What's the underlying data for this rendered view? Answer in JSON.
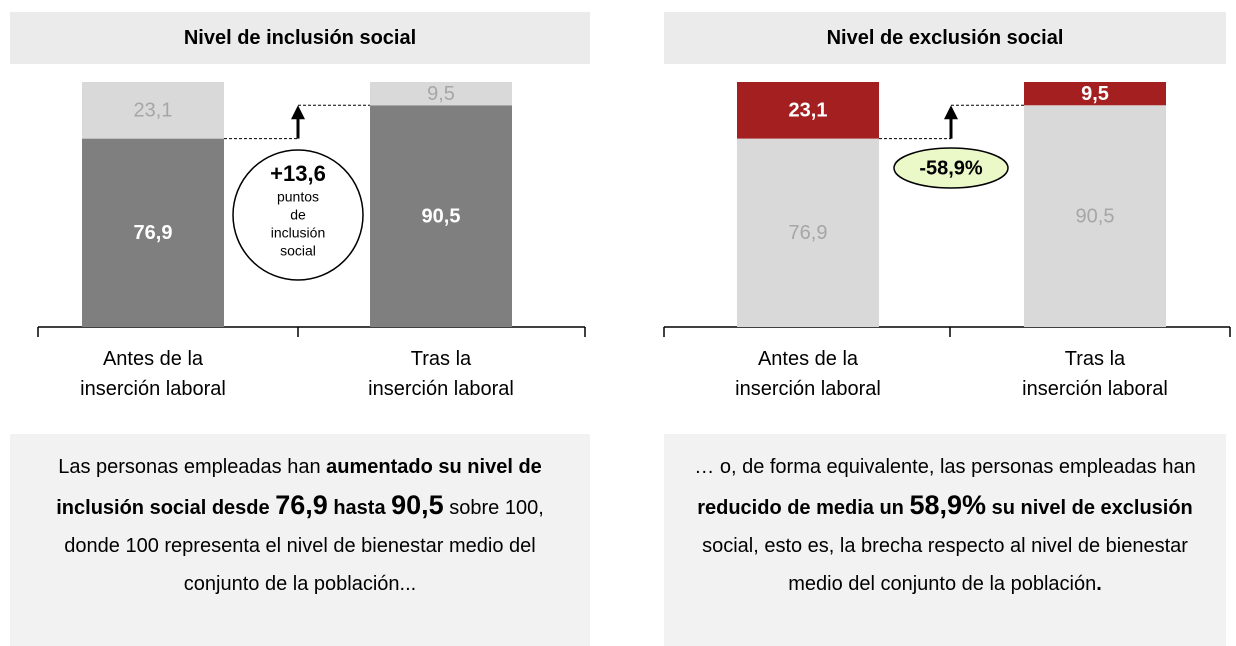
{
  "chart_data": [
    {
      "type": "stacked_bar",
      "title": "Nivel de inclusión social",
      "categories": [
        "Antes de la\ninserción laboral",
        "Tras la\ninserción laboral"
      ],
      "ylim": [
        0,
        100
      ],
      "series": [
        {
          "color": "#7f7f7f",
          "values": [
            76.9,
            90.5
          ],
          "value_labels": [
            "76,9",
            "90,5"
          ],
          "label_color": "#ffffff",
          "label_bold": true
        },
        {
          "color": "#d9d9d9",
          "values": [
            23.1,
            9.5
          ],
          "value_labels": [
            "23,1",
            "9,5"
          ],
          "label_color": "#a6a6a6",
          "label_bold": false
        }
      ],
      "annotation": {
        "text": "+13,6",
        "lines": [
          "puntos",
          "de",
          "inclusión",
          "social"
        ],
        "shape": "circle",
        "fill": "#ffffff"
      },
      "caption": [
        {
          "text": "Las personas empleadas han ",
          "bold": false,
          "big": false
        },
        {
          "text": "aumentado su nivel de inclusión social desde ",
          "bold": true,
          "big": false
        },
        {
          "text": "76,9",
          "bold": true,
          "big": true
        },
        {
          "text": " hasta ",
          "bold": true,
          "big": false
        },
        {
          "text": "90,5",
          "bold": true,
          "big": true
        },
        {
          "text": " sobre 100, donde 100 representa el nivel de bienestar medio del conjunto de la población...",
          "bold": false,
          "big": false
        }
      ]
    },
    {
      "type": "stacked_bar",
      "title": "Nivel de exclusión social",
      "categories": [
        "Antes de la\ninserción laboral",
        "Tras la\ninserción laboral"
      ],
      "ylim": [
        0,
        100
      ],
      "series": [
        {
          "color": "#d9d9d9",
          "values": [
            76.9,
            90.5
          ],
          "value_labels": [
            "76,9",
            "90,5"
          ],
          "label_color": "#a6a6a6",
          "label_bold": false
        },
        {
          "color": "#a31f20",
          "values": [
            23.1,
            9.5
          ],
          "value_labels": [
            "23,1",
            "9,5"
          ],
          "label_color": "#ffffff",
          "label_bold": true
        }
      ],
      "annotation": {
        "text": "-58,9%",
        "lines": [],
        "shape": "ellipse",
        "fill": "#ebf8c8"
      },
      "caption": [
        {
          "text": "… o, de forma equivalente, las personas empleadas han ",
          "bold": false,
          "big": false
        },
        {
          "text": "reducido de media un ",
          "bold": true,
          "big": false
        },
        {
          "text": "58,9%",
          "bold": true,
          "big": true
        },
        {
          "text": " su nivel de exclusión",
          "bold": true,
          "big": false
        },
        {
          "text": " social, esto es, la brecha respecto al nivel de bienestar medio del conjunto de la población",
          "bold": false,
          "big": false
        },
        {
          "text": ".",
          "bold": true,
          "big": false
        }
      ]
    }
  ]
}
